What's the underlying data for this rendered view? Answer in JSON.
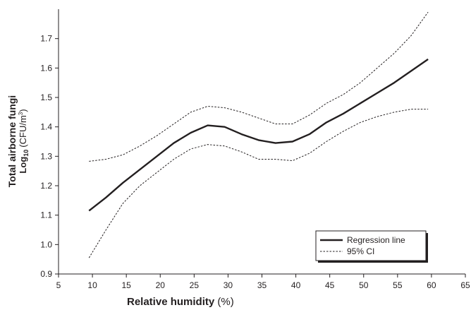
{
  "chart_data": {
    "type": "line",
    "x_label_parts": [
      "Relative humidity",
      "(%)"
    ],
    "y_label": "Total airborne fungi",
    "y_label_unit_parts": [
      "Log",
      "10",
      "(CFU/m",
      "3",
      ")"
    ],
    "x": [
      9.5,
      12,
      14.5,
      17,
      19.5,
      22,
      24.5,
      27,
      29.5,
      32,
      34.5,
      37,
      39.5,
      42,
      44.5,
      47,
      49.5,
      52,
      54.5,
      57,
      59.5
    ],
    "series": [
      {
        "name": "Regression line",
        "color": "#231f20",
        "style": "solid",
        "values": [
          1.115,
          1.16,
          1.21,
          1.255,
          1.3,
          1.345,
          1.38,
          1.405,
          1.4,
          1.375,
          1.355,
          1.345,
          1.35,
          1.375,
          1.415,
          1.445,
          1.48,
          1.515,
          1.55,
          1.59,
          1.63
        ]
      },
      {
        "name": "95% CI",
        "color": "#231f20",
        "style": "dashed",
        "values": [
          1.283,
          1.29,
          1.305,
          1.335,
          1.37,
          1.41,
          1.45,
          1.47,
          1.465,
          1.45,
          1.43,
          1.41,
          1.41,
          1.44,
          1.48,
          1.51,
          1.55,
          1.6,
          1.65,
          1.71,
          1.79
        ],
        "lower": [
          0.955,
          1.05,
          1.14,
          1.2,
          1.245,
          1.29,
          1.325,
          1.34,
          1.335,
          1.315,
          1.29,
          1.29,
          1.285,
          1.31,
          1.35,
          1.385,
          1.415,
          1.435,
          1.45,
          1.46,
          1.46
        ]
      }
    ],
    "xlim": [
      5,
      65
    ],
    "xticks": [
      5,
      10,
      15,
      20,
      25,
      30,
      35,
      40,
      45,
      50,
      55,
      60,
      65
    ],
    "ylim": [
      0.9,
      1.8
    ],
    "yticks": [
      {
        "value": 0.9,
        "label": "0.9"
      },
      {
        "value": 1.0,
        "label": "1.0"
      },
      1.1,
      1.2,
      1.3,
      1.4,
      1.5,
      1.6,
      1.7
    ],
    "grid": false,
    "legend": "lower right"
  }
}
